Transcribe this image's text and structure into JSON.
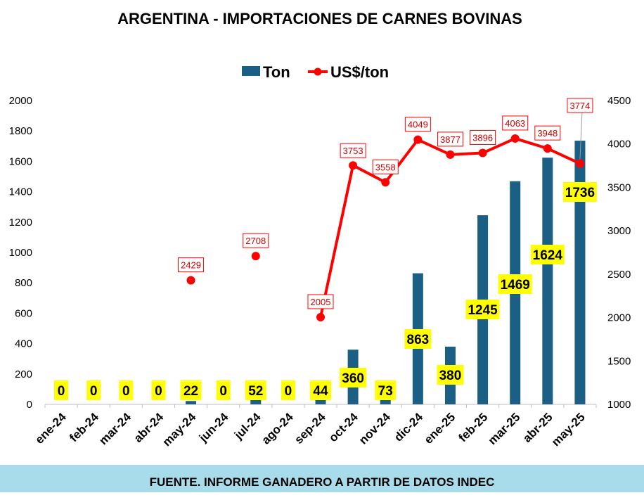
{
  "title": "ARGENTINA - IMPORTACIONES DE CARNES BOVINAS",
  "footer": "FUENTE. INFORME GANADERO A PARTIR DE DATOS INDEC",
  "colors": {
    "bar": "#1c5f85",
    "line": "#ff0000",
    "label_bg": "#ffff00",
    "footer_bg": "#a9dcea"
  },
  "chart_data": {
    "type": "bar",
    "title": "ARGENTINA - IMPORTACIONES DE CARNES BOVINAS",
    "categories": [
      "ene-24",
      "feb-24",
      "mar-24",
      "abr-24",
      "may-24",
      "jun-24",
      "jul-24",
      "ago-24",
      "sep-24",
      "oct-24",
      "nov-24",
      "dic-24",
      "ene-25",
      "feb-25",
      "mar-25",
      "abr-25",
      "may-25"
    ],
    "legend_position": "top",
    "grid": false,
    "series": [
      {
        "name": "Ton",
        "type": "bar",
        "axis": "left",
        "values": [
          0,
          0,
          0,
          0,
          22,
          0,
          52,
          0,
          44,
          360,
          73,
          863,
          380,
          1245,
          1469,
          1624,
          1736
        ]
      },
      {
        "name": "US$/ton",
        "type": "line",
        "axis": "right",
        "values": [
          null,
          null,
          null,
          null,
          2429,
          null,
          2708,
          null,
          2005,
          3753,
          3558,
          4049,
          3877,
          3896,
          4063,
          3948,
          3774
        ]
      }
    ],
    "y_left": {
      "min": 0,
      "max": 2000,
      "ticks": [
        "0",
        "200",
        "400",
        "600",
        "800",
        "1000",
        "1200",
        "1400",
        "1600",
        "1800",
        "2000"
      ]
    },
    "y_right": {
      "min": 1000,
      "max": 4500,
      "ticks": [
        "1000",
        "1500",
        "2000",
        "2500",
        "3000",
        "3500",
        "4000",
        "4500"
      ]
    }
  }
}
